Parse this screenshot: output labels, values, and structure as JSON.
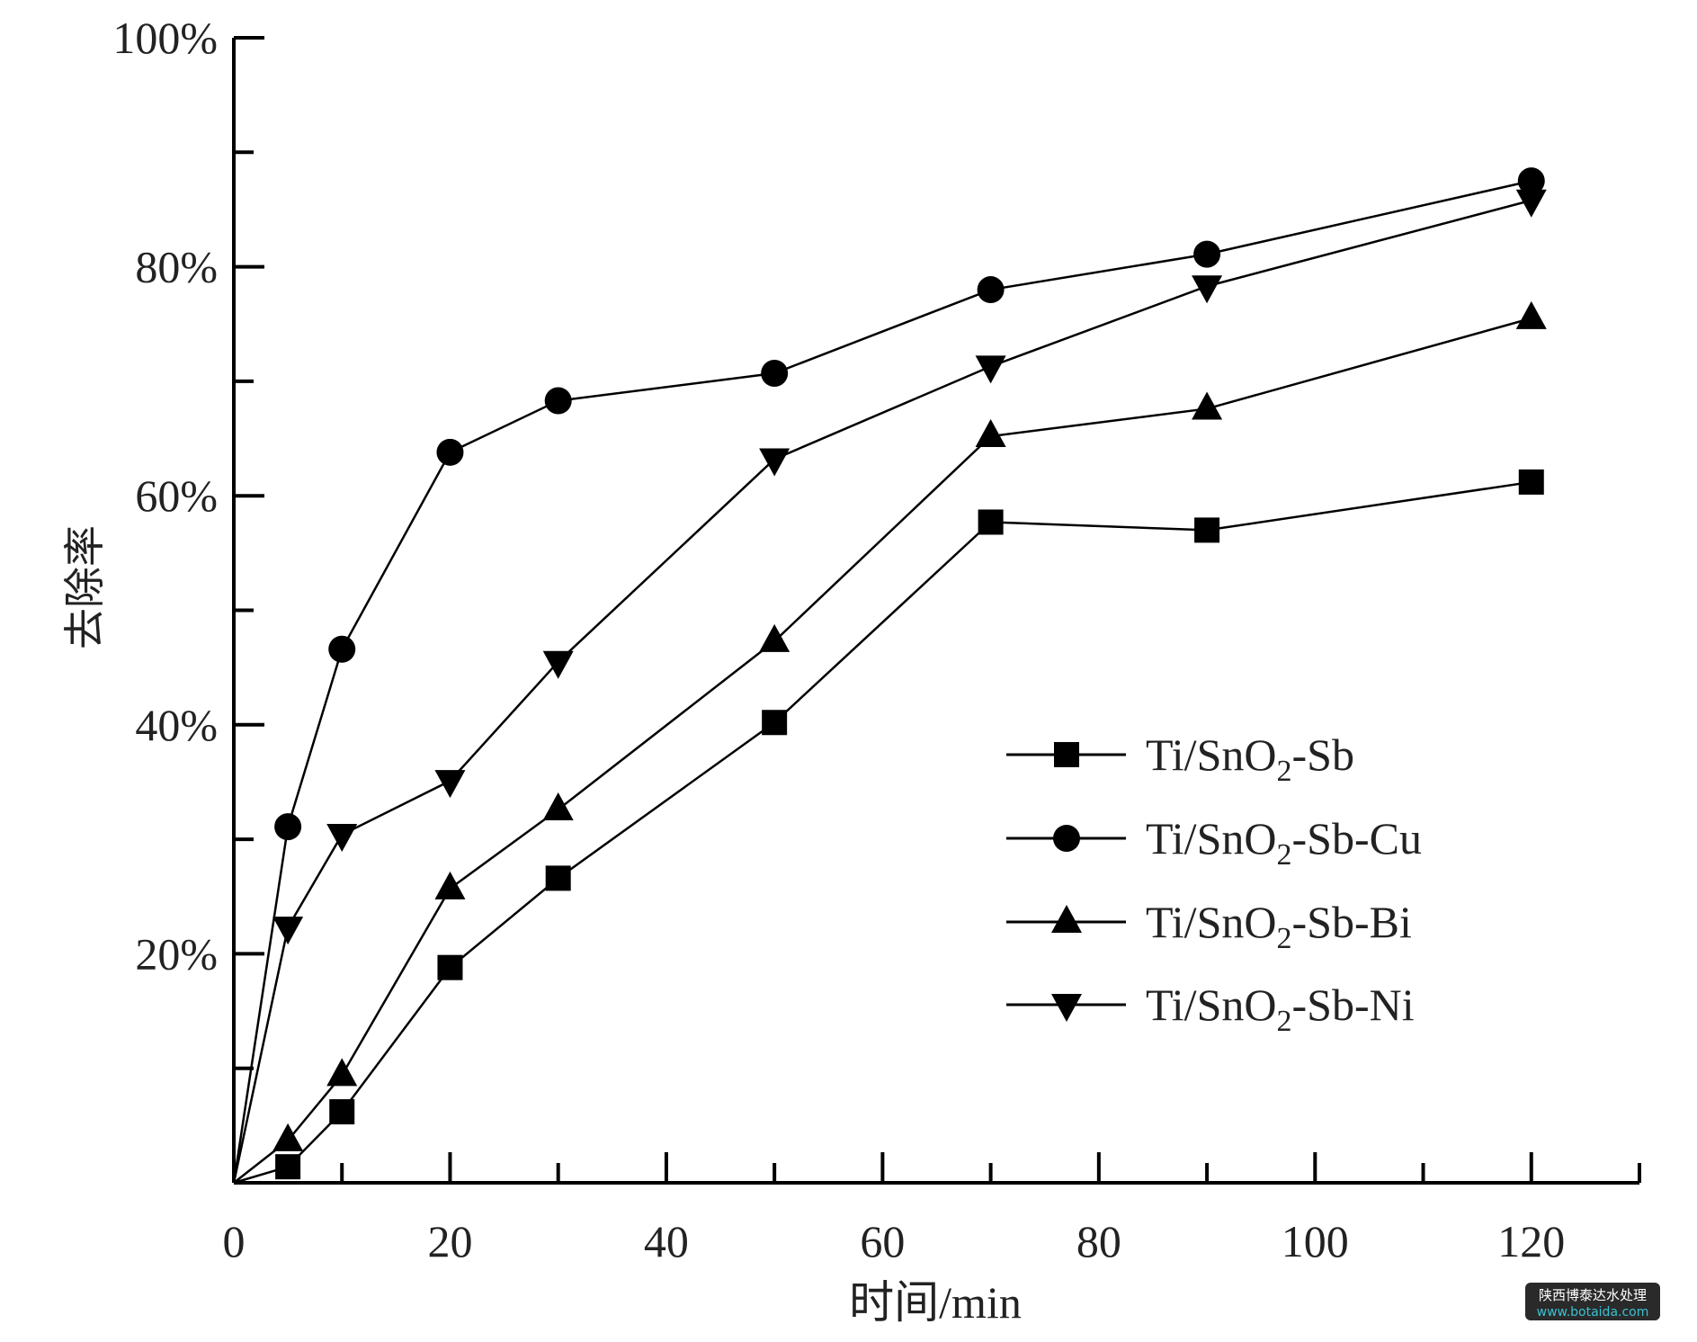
{
  "chart_data": {
    "type": "line",
    "title": "",
    "xlabel": "时间/min",
    "ylabel": "去除率",
    "xlim": [
      0,
      130
    ],
    "ylim": [
      0,
      100
    ],
    "x_ticks": [
      0,
      20,
      40,
      60,
      80,
      100,
      120
    ],
    "x_tick_labels": [
      "0",
      "20",
      "40",
      "60",
      "80",
      "100",
      "120"
    ],
    "y_ticks": [
      20,
      40,
      60,
      80,
      100
    ],
    "y_tick_labels": [
      "20%",
      "40%",
      "60%",
      "80%",
      "100%"
    ],
    "grid": false,
    "legend_position": "right",
    "color": "#000000",
    "x": [
      0,
      5,
      10,
      20,
      30,
      50,
      70,
      90,
      120
    ],
    "series": [
      {
        "name": "Ti/SnO2-Sb",
        "label_parts": [
          "Ti/SnO",
          "2",
          "-Sb"
        ],
        "marker": "square",
        "values": [
          0,
          1.4,
          6.2,
          18.8,
          26.6,
          40.2,
          57.7,
          57.0,
          61.2
        ]
      },
      {
        "name": "Ti/SnO2-Sb-Cu",
        "label_parts": [
          "Ti/SnO",
          "2",
          "-Sb-Cu"
        ],
        "marker": "circle",
        "values": [
          0,
          31.1,
          46.6,
          63.8,
          68.3,
          70.7,
          78.0,
          81.1,
          87.5
        ]
      },
      {
        "name": "Ti/SnO2-Sb-Bi",
        "label_parts": [
          "Ti/SnO",
          "2",
          "-Sb-Bi"
        ],
        "marker": "triangle-up",
        "values": [
          0,
          3.7,
          9.4,
          25.7,
          32.6,
          47.3,
          65.2,
          67.6,
          75.5
        ]
      },
      {
        "name": "Ti/SnO2-Sb-Ni",
        "label_parts": [
          "Ti/SnO",
          "2",
          "-Sb-Ni"
        ],
        "marker": "triangle-down",
        "values": [
          0,
          22.3,
          30.4,
          35.1,
          45.5,
          63.2,
          71.3,
          78.3,
          85.8
        ]
      }
    ]
  },
  "watermark": {
    "line1": "陕西博泰达水处理",
    "line2": "www.botaida.com"
  }
}
